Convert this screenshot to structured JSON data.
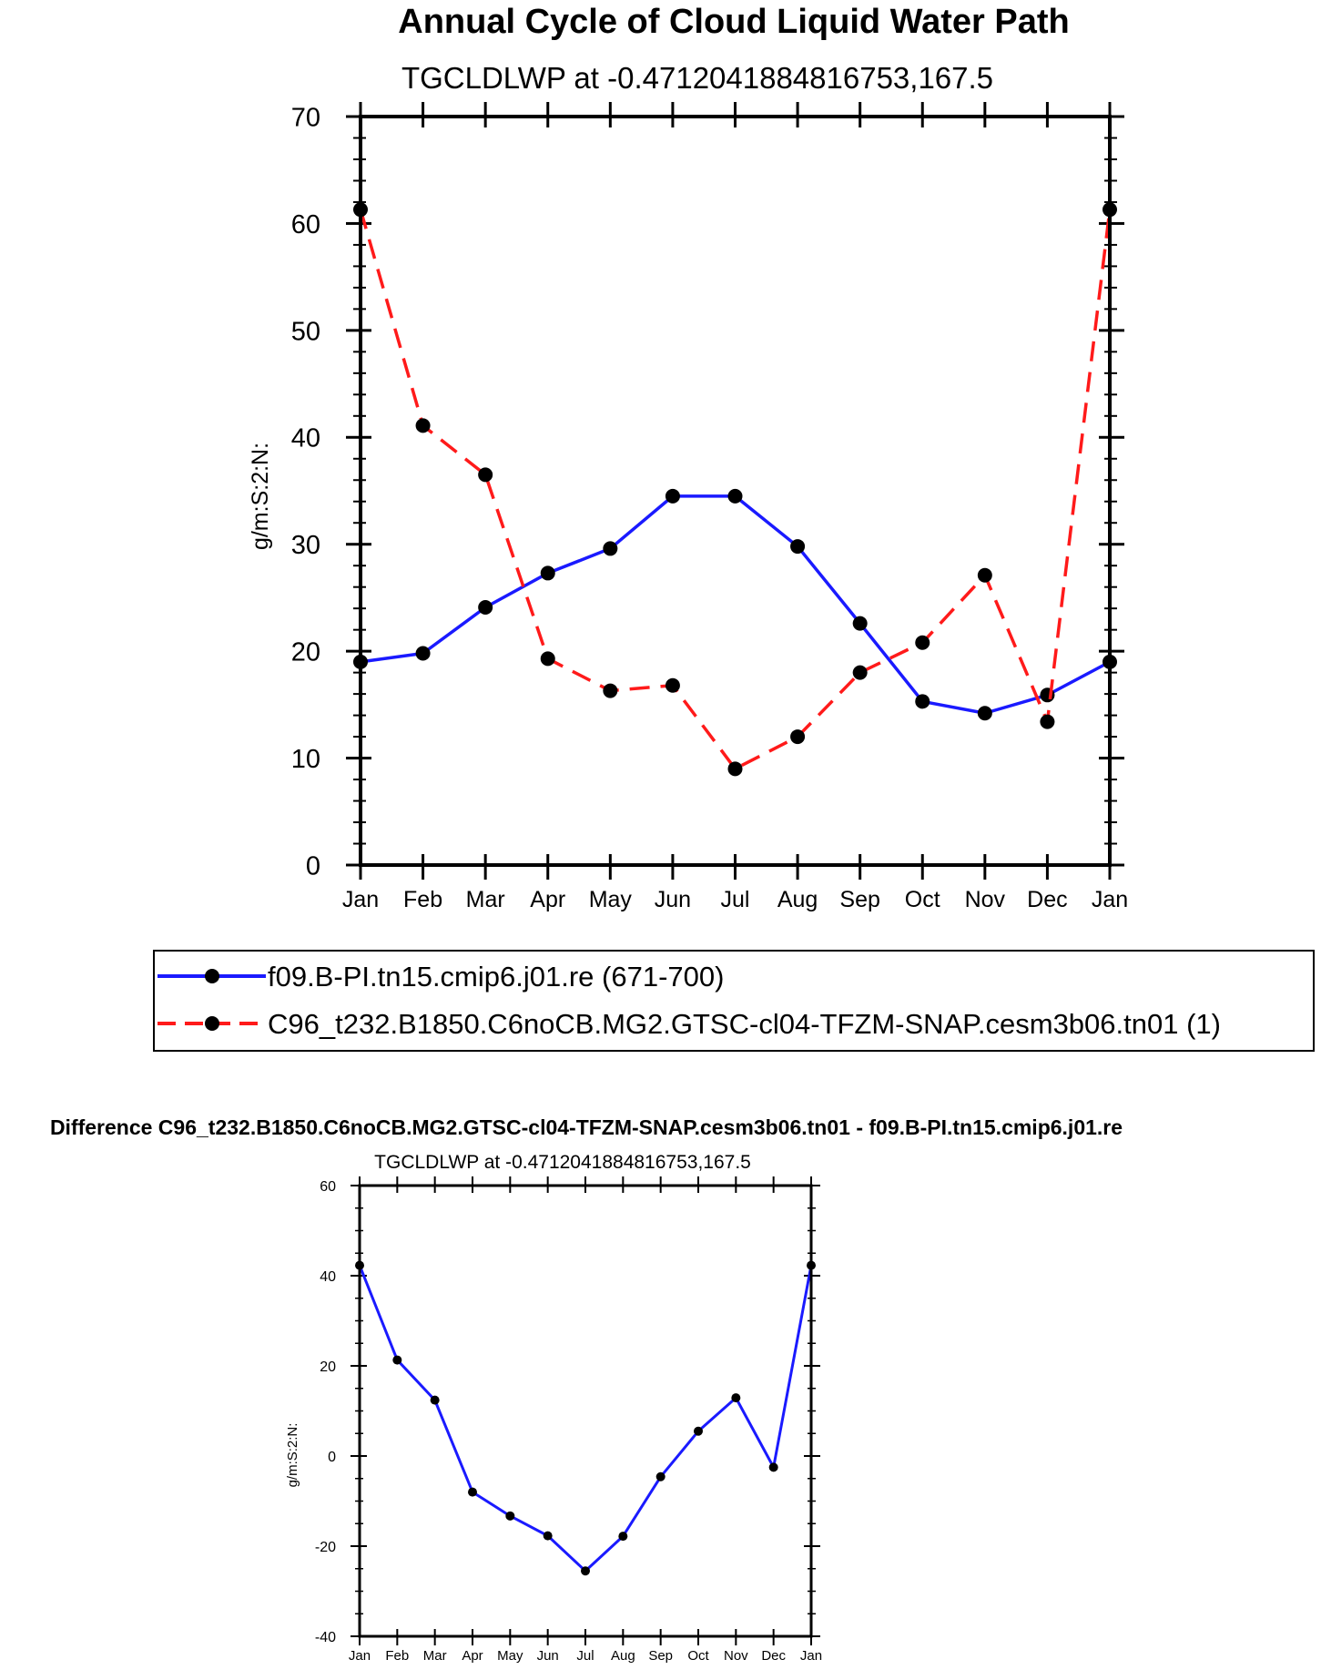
{
  "colors": {
    "series1": "#1a1aff",
    "series2": "#ff1a1a",
    "markers": "#000000",
    "axes": "#000000"
  },
  "chart_data": [
    {
      "type": "line",
      "title": "Annual Cycle of Cloud Liquid Water Path",
      "subtitle": "TGCLDLWP at -0.4712041884816753,167.5",
      "ylabel": "g/m:S:2:N:",
      "xlabel": "",
      "ylim": [
        0,
        70
      ],
      "yticks": [
        0,
        10,
        20,
        30,
        40,
        50,
        60,
        70
      ],
      "categories": [
        "Jan",
        "Feb",
        "Mar",
        "Apr",
        "May",
        "Jun",
        "Jul",
        "Aug",
        "Sep",
        "Oct",
        "Nov",
        "Dec",
        "Jan"
      ],
      "series": [
        {
          "name": "f09.B-PI.tn15.cmip6.j01.re (671-700)",
          "style": "solid",
          "values": [
            19.0,
            19.8,
            24.1,
            27.3,
            29.6,
            34.5,
            34.5,
            29.8,
            22.6,
            15.3,
            14.2,
            15.9,
            19.0
          ]
        },
        {
          "name": "C96_t232.B1850.C6noCB.MG2.GTSC-cl04-TFZM-SNAP.cesm3b06.tn01 (1)",
          "style": "dashed",
          "values": [
            61.3,
            41.1,
            36.5,
            19.3,
            16.3,
            16.8,
            9.0,
            12.0,
            18.0,
            20.8,
            27.1,
            13.4,
            61.3
          ]
        }
      ],
      "legend": "bottom"
    },
    {
      "type": "line",
      "title": "Difference C96_t232.B1850.C6noCB.MG2.GTSC-cl04-TFZM-SNAP.cesm3b06.tn01 - f09.B-PI.tn15.cmip6.j01.re",
      "subtitle": "TGCLDLWP at -0.4712041884816753,167.5",
      "ylabel": "g/m:S:2:N:",
      "xlabel": "",
      "ylim": [
        -40,
        60
      ],
      "yticks": [
        -40,
        -20,
        0,
        20,
        40,
        60
      ],
      "categories": [
        "Jan",
        "Feb",
        "Mar",
        "Apr",
        "May",
        "Jun",
        "Jul",
        "Aug",
        "Sep",
        "Oct",
        "Nov",
        "Dec",
        "Jan"
      ],
      "series": [
        {
          "name": "Difference",
          "style": "solid",
          "values": [
            42.3,
            21.3,
            12.4,
            -8.0,
            -13.3,
            -17.7,
            -25.5,
            -17.8,
            -4.6,
            5.5,
            12.9,
            -2.5,
            42.3
          ]
        }
      ]
    }
  ]
}
